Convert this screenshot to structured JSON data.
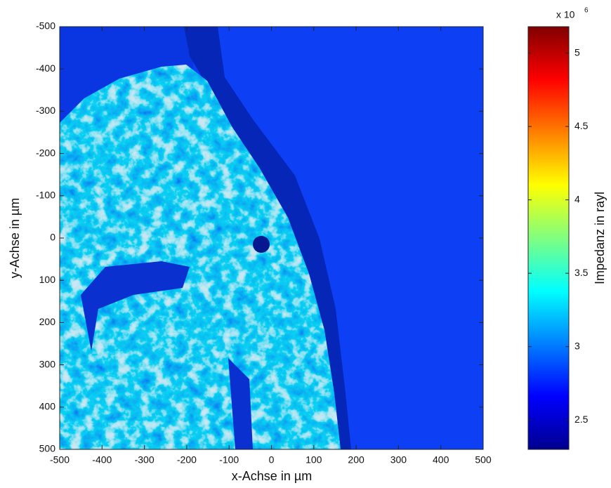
{
  "chart_data": {
    "type": "heatmap",
    "xlabel": "x-Achse in µm",
    "ylabel": "y-Achse in µm",
    "xlim": [
      -500,
      500
    ],
    "xticks": [
      -500,
      -400,
      -300,
      -200,
      -100,
      0,
      100,
      200,
      300,
      400,
      500
    ],
    "ylim": [
      500,
      -500
    ],
    "yticks": [
      -500,
      -400,
      -300,
      -200,
      -100,
      0,
      100,
      200,
      300,
      400,
      500
    ],
    "colorbar": {
      "label": "Impedanz in rayl",
      "colormap": "jet",
      "multiplier": "x 10",
      "exponent": "6",
      "lim": [
        2.3,
        5.18
      ],
      "ticks": [
        2.5,
        3,
        3.5,
        4,
        4.5,
        5
      ]
    }
  }
}
